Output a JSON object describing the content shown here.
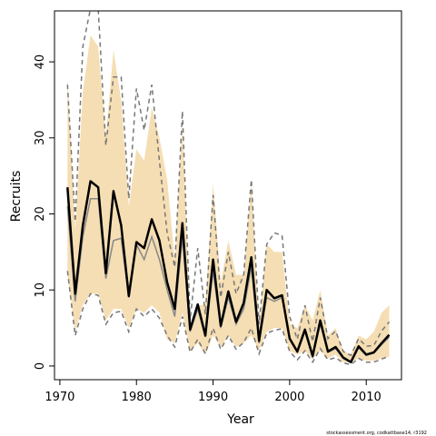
{
  "chart_data": {
    "type": "line",
    "title": "",
    "xlabel": "Year",
    "ylabel": "Recruits",
    "xlim": [
      1969.3,
      2014.6
    ],
    "ylim": [
      -1.8,
      46.7
    ],
    "x_ticks": [
      1970,
      1980,
      1990,
      2000,
      2010
    ],
    "y_ticks": [
      0,
      10,
      20,
      30,
      40
    ],
    "grid": false,
    "legend": "none",
    "footnote": "stockassessment.org, codkattbase14, r3192",
    "colors": {
      "band": "#f5deb3",
      "estimate": "#000000",
      "secondary": "#888888",
      "bounds": "#777777"
    },
    "x": [
      1971,
      1972,
      1973,
      1974,
      1975,
      1976,
      1977,
      1978,
      1979,
      1980,
      1981,
      1982,
      1983,
      1984,
      1985,
      1986,
      1987,
      1988,
      1989,
      1990,
      1991,
      1992,
      1993,
      1994,
      1995,
      1996,
      1997,
      1998,
      1999,
      2000,
      2001,
      2002,
      2003,
      2004,
      2005,
      2006,
      2007,
      2008,
      2009,
      2010,
      2011,
      2012,
      2013
    ],
    "series": [
      {
        "role": "band",
        "upper": [
          38,
          18,
          36,
          43.5,
          42,
          30,
          41.5,
          35,
          21,
          28.5,
          27,
          34,
          30,
          24.5,
          14,
          32,
          5,
          8,
          8,
          24,
          11,
          16.5,
          12,
          12,
          24,
          5,
          16,
          15,
          15,
          5.5,
          5,
          8,
          6,
          10,
          4,
          5,
          2,
          1.5,
          4,
          3.5,
          4.5,
          7,
          8
        ],
        "lower": [
          12,
          4.5,
          8,
          9.5,
          9.5,
          6,
          7.5,
          7.5,
          5,
          7.5,
          7,
          8,
          7,
          3.5,
          3,
          7,
          2,
          3,
          1.5,
          4,
          2.5,
          4,
          2.5,
          3,
          4,
          2,
          4.5,
          5,
          5,
          2,
          1.5,
          2,
          1,
          2,
          1,
          1.5,
          0.5,
          0.5,
          1,
          0.7,
          0.7,
          1,
          1.2
        ]
      },
      {
        "role": "estimate",
        "values": [
          23.5,
          9.5,
          18.5,
          24.3,
          23.5,
          12.2,
          23,
          18.5,
          9.2,
          16.3,
          15.5,
          19.3,
          16.5,
          11,
          7.5,
          18.8,
          4.8,
          8.1,
          4,
          14,
          5.3,
          9.8,
          5.8,
          8.3,
          14.3,
          3.3,
          10,
          8.9,
          9.3,
          3.6,
          1.9,
          4.8,
          1.3,
          6,
          1.9,
          2.5,
          1.1,
          0.5,
          2.6,
          1.5,
          1.8,
          3,
          4.1
        ]
      },
      {
        "role": "secondary",
        "values": [
          21,
          8.5,
          17,
          22,
          22,
          11.5,
          16.5,
          16.8,
          9,
          16,
          14,
          17,
          14,
          10,
          6.5,
          17,
          4.5,
          7.5,
          3.8,
          12.5,
          5,
          9,
          5.5,
          7.5,
          13,
          3,
          9,
          8.5,
          9,
          3.5,
          1.8,
          4.5,
          1.2,
          5.5,
          1.8,
          2.3,
          1,
          0.5,
          2.4,
          1.4,
          1.7,
          2.8,
          3.8
        ]
      },
      {
        "role": "upper-bound",
        "values": [
          37,
          19,
          42,
          47,
          47,
          29,
          38,
          38,
          22,
          36.5,
          31,
          37,
          27,
          17.5,
          13,
          33.5,
          6,
          15.5,
          6.8,
          22.5,
          9,
          15,
          9.5,
          12,
          24.5,
          5.5,
          16,
          17.5,
          17.2,
          6.5,
          3.5,
          8,
          3.2,
          9,
          3.6,
          4.6,
          1.9,
          1.4,
          3.6,
          2.6,
          2.7,
          4.6,
          5.8
        ]
      },
      {
        "role": "lower-bound",
        "values": [
          12.5,
          4,
          7.5,
          9.5,
          9.3,
          5.5,
          7,
          7.2,
          4.5,
          7.5,
          6.5,
          7.5,
          6.3,
          4,
          2.5,
          6.5,
          1.8,
          3.5,
          1.6,
          5,
          2.2,
          4,
          2.2,
          3.1,
          5,
          1.6,
          4.3,
          4.7,
          4.9,
          1.9,
          0.8,
          2,
          0.5,
          2.3,
          0.8,
          1.1,
          0.4,
          0.2,
          1,
          0.5,
          0.5,
          0.9,
          1.3
        ]
      }
    ]
  }
}
